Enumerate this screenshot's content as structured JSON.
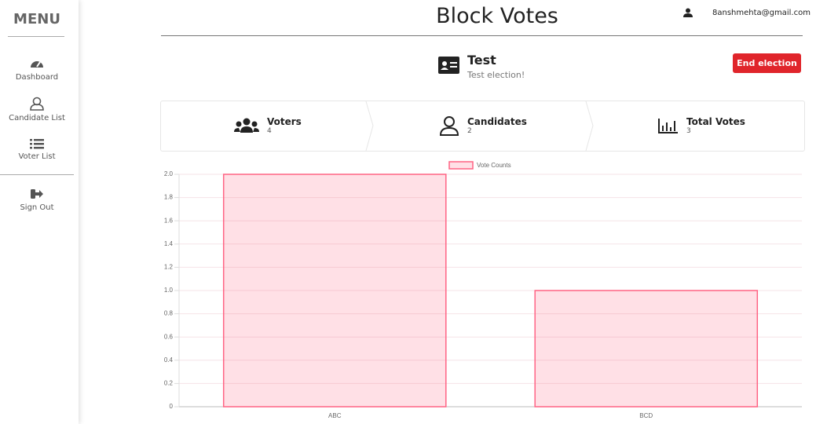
{
  "sidebar": {
    "title": "MENU",
    "items": [
      "Dashboard",
      "Candidate List",
      "Voter List",
      "Sign Out"
    ]
  },
  "header": {
    "title": "Block Votes",
    "user_email": "8anshmehta@gmail.com"
  },
  "election": {
    "name": "Test",
    "description": "Test election!",
    "button": "End election"
  },
  "stats": [
    {
      "label": "Voters",
      "value": 4
    },
    {
      "label": "Candidates",
      "value": 2
    },
    {
      "label": "Total Votes",
      "value": 3
    }
  ],
  "chart_data": {
    "type": "bar",
    "legend": "Vote Counts",
    "categories": [
      "ABC",
      "BCD"
    ],
    "values": [
      2,
      1
    ],
    "color": "rgba(255,99,132,0.2)",
    "border_color": "rgb(255,99,132)",
    "ylim": [
      0,
      2
    ],
    "yticks": [
      0,
      0.2,
      0.4,
      0.6,
      0.8,
      {
        "value": 1,
        "label": "1.0"
      },
      1.2,
      1.4,
      1.6,
      1.8,
      {
        "value": 2,
        "label": "2.0"
      }
    ],
    "grid": true
  }
}
